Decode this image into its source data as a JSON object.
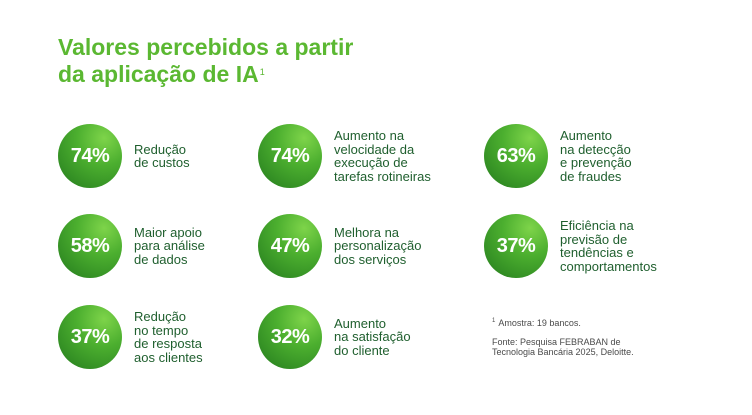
{
  "title": {
    "line1": "Valores percebidos a partir",
    "line2": "da aplicação de IA",
    "footnote_ref": "1"
  },
  "stats": [
    {
      "value": "74%",
      "label": "Redução\nde custos"
    },
    {
      "value": "74%",
      "label": "Aumento na\nvelocidade da\nexecução de\ntarefas rotineiras"
    },
    {
      "value": "63%",
      "label": "Aumento\nna detecção\ne prevenção\nde fraudes"
    },
    {
      "value": "58%",
      "label": "Maior apoio\npara análise\nde dados"
    },
    {
      "value": "47%",
      "label": "Melhora na\npersonalização\ndos serviços"
    },
    {
      "value": "37%",
      "label": "Eficiência na\nprevisão de\ntendências e\ncomportamentos"
    },
    {
      "value": "37%",
      "label": "Redução\nno tempo\nde resposta\naos clientes"
    },
    {
      "value": "32%",
      "label": "Aumento\nna satisfação\ndo cliente"
    }
  ],
  "notes": {
    "footnote_mark": "1",
    "sample": "Amostra: 19 bancos.",
    "source": "Fonte: Pesquisa FEBRABAN de\nTecnologia Bancária 2025, Deloitte."
  },
  "colors": {
    "title": "#5bb832",
    "circle_light": "#7ed44a",
    "circle_dark": "#237a1d",
    "label": "#1f5f2e"
  }
}
